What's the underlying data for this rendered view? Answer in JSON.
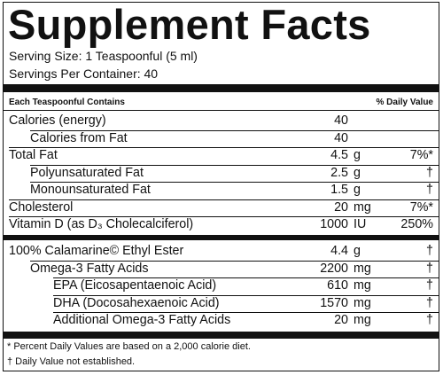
{
  "title": "Supplement Facts",
  "serving_size": "Serving Size: 1 Teaspoonful (5 ml)",
  "servings_per_container": "Servings Per Container: 40",
  "header": {
    "left": "Each Teaspoonful Contains",
    "right": "% Daily Value"
  },
  "sections": [
    {
      "rows": [
        {
          "name": "Calories (energy)",
          "amount": "40"
        },
        {
          "name": "Calories from Fat",
          "amount": "40"
        },
        {
          "name": "Total Fat",
          "amount": "4.5",
          "unit": "g",
          "dv": "7%*"
        },
        {
          "name": "Polyunsaturated Fat",
          "amount": "2.5",
          "unit": "g",
          "dv": "†"
        },
        {
          "name": "Monounsaturated Fat",
          "amount": "1.5",
          "unit": "g",
          "dv": "†"
        },
        {
          "name": "Cholesterol",
          "amount": "20",
          "unit": "mg",
          "dv": "7%*"
        },
        {
          "name": "Vitamin D (as D₃ Cholecalciferol)",
          "amount": "1000",
          "unit": "IU",
          "dv": "250%"
        }
      ]
    },
    {
      "rows": [
        {
          "name": "100% Calamarine© Ethyl Ester",
          "amount": "4.4",
          "unit": "g",
          "dv": "†"
        },
        {
          "name": "Omega-3 Fatty Acids",
          "amount": "2200",
          "unit": "mg",
          "dv": "†"
        },
        {
          "name": "EPA (Eicosapentaenoic Acid)",
          "amount": "610",
          "unit": "mg",
          "dv": "†"
        },
        {
          "name": "DHA (Docosahexaenoic Acid)",
          "amount": "1570",
          "unit": "mg",
          "dv": "†"
        },
        {
          "name": "Additional Omega-3 Fatty Acids",
          "amount": "20",
          "unit": "mg",
          "dv": "†"
        }
      ]
    }
  ],
  "footnotes": [
    "* Percent Daily Values are based on a 2,000 calorie diet.",
    "† Daily Value not established."
  ]
}
